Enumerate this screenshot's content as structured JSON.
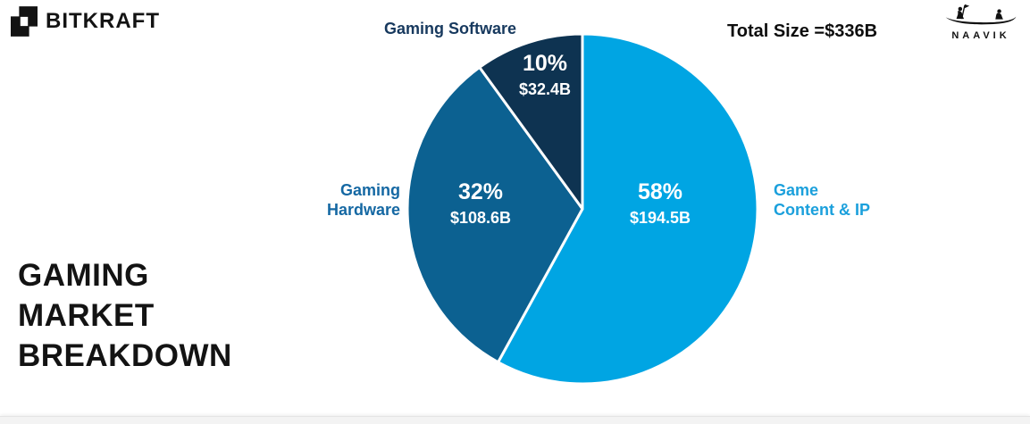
{
  "header": {
    "bitkraft_logo_text": "BITKRAFT",
    "naavik_logo_text": "NAAVIK",
    "total_size_label": "Total Size =$336B"
  },
  "main": {
    "title_lines": [
      "GAMING",
      "MARKET",
      "BREAKDOWN"
    ]
  },
  "chart_data": {
    "type": "pie",
    "title": "Gaming Market Breakdown",
    "total_label": "Total Size =$336B",
    "total_value_billions": 336,
    "start_angle_deg": 0,
    "direction": "clockwise",
    "slices": [
      {
        "label": "Game Content & IP",
        "label_lines": [
          "Game",
          "Content & IP"
        ],
        "percent": 58,
        "value_billions": 194.5,
        "percent_label": "58%",
        "value_label": "$194.5B",
        "color": "#00A5E3",
        "label_color": "#1BA0DC"
      },
      {
        "label": "Gaming Hardware",
        "label_lines": [
          "Gaming",
          "Hardware"
        ],
        "percent": 32,
        "value_billions": 108.6,
        "percent_label": "32%",
        "value_label": "$108.6B",
        "color": "#0C6191",
        "label_color": "#1568A3"
      },
      {
        "label": "Gaming Software",
        "label_lines": [
          "Gaming Software"
        ],
        "percent": 10,
        "value_billions": 32.4,
        "percent_label": "10%",
        "value_label": "$32.4B",
        "color": "#0E3351",
        "label_color": "#17395E"
      }
    ]
  }
}
